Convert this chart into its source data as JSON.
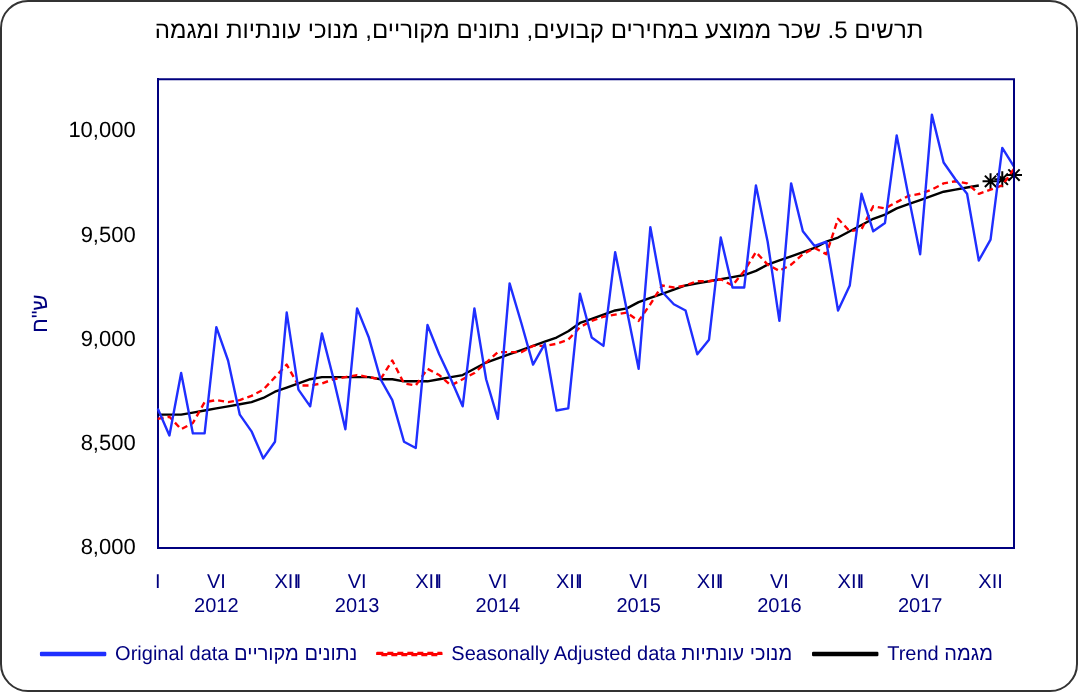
{
  "chart_data": {
    "type": "line",
    "title": "תרשים 5. שכר ממוצע במחירים קבועים, נתונים מקוריים, מנוכי עונתיות ומגמה",
    "ylabel": "ש\"ח",
    "categories": [
      "I",
      null,
      null,
      null,
      null,
      "VI\n2012",
      null,
      null,
      null,
      null,
      null,
      "XII",
      "I",
      null,
      null,
      null,
      null,
      "VI\n2013",
      null,
      null,
      null,
      null,
      null,
      "XII",
      "I",
      null,
      null,
      null,
      null,
      "VI\n2014",
      null,
      null,
      null,
      null,
      null,
      "XII",
      "I",
      null,
      null,
      null,
      null,
      "VI\n2015",
      null,
      null,
      null,
      null,
      null,
      "XII",
      "I",
      null,
      null,
      null,
      null,
      "VI\n2016",
      null,
      null,
      null,
      null,
      null,
      "XII",
      "I",
      null,
      null,
      null,
      null,
      "VI\n2017",
      null,
      null,
      null,
      null,
      null,
      "XII",
      null,
      null
    ],
    "ylim": [
      8000,
      10250
    ],
    "yticks": [
      {
        "value": 8000,
        "label": "8,000"
      },
      {
        "value": 8500,
        "label": "8,500"
      },
      {
        "value": 9000,
        "label": "9,000"
      },
      {
        "value": 9500,
        "label": "9,500"
      },
      {
        "value": 10000,
        "label": "10,000"
      }
    ],
    "grid": false,
    "legend": "bottom",
    "marker": "none",
    "series": [
      {
        "name": "Original data נתונים מקוריים",
        "color": "#1f2fff",
        "values": [
          8670,
          8540,
          8840,
          8550,
          8550,
          9060,
          8900,
          8640,
          8560,
          8430,
          8510,
          9130,
          8760,
          8680,
          9030,
          8810,
          8570,
          9150,
          9010,
          8810,
          8710,
          8510,
          8480,
          9070,
          8930,
          8810,
          8680,
          9150,
          8810,
          8620,
          9270,
          9080,
          8880,
          8980,
          8660,
          8670,
          9220,
          9010,
          8970,
          9420,
          9140,
          8860,
          9540,
          9230,
          9170,
          9140,
          8930,
          9000,
          9490,
          9250,
          9250,
          9740,
          9470,
          9090,
          9750,
          9520,
          9450,
          9470,
          9140,
          9260,
          9700,
          9520,
          9560,
          9980,
          9690,
          9410,
          10080,
          9850,
          9770,
          9700,
          9380,
          9480,
          9920,
          9830
        ]
      },
      {
        "name": "Seasonally Adjusted data מנוכי עונתיות",
        "color": "#ff0000",
        "line_style": "dashed",
        "values": [
          8620,
          8630,
          8570,
          8600,
          8700,
          8710,
          8700,
          8710,
          8730,
          8760,
          8820,
          8880,
          8780,
          8780,
          8790,
          8810,
          8820,
          8830,
          8820,
          8810,
          8900,
          8790,
          8780,
          8860,
          8830,
          8780,
          8810,
          8840,
          8890,
          8940,
          8940,
          8940,
          8970,
          8970,
          8980,
          9000,
          9060,
          9090,
          9110,
          9120,
          9130,
          9090,
          9170,
          9260,
          9250,
          9260,
          9280,
          9280,
          9290,
          9260,
          9330,
          9420,
          9360,
          9330,
          9360,
          9410,
          9440,
          9410,
          9580,
          9520,
          9530,
          9640,
          9630,
          9660,
          9690,
          9700,
          9720,
          9750,
          9760,
          9750,
          9700,
          9720,
          9740,
          9820
        ]
      },
      {
        "name": "Trend מגמה",
        "color": "#000000",
        "values": [
          8640,
          8640,
          8640,
          8650,
          8660,
          8670,
          8680,
          8690,
          8700,
          8720,
          8750,
          8770,
          8790,
          8810,
          8820,
          8820,
          8820,
          8820,
          8820,
          8810,
          8810,
          8800,
          8800,
          8800,
          8810,
          8820,
          8830,
          8860,
          8890,
          8910,
          8930,
          8950,
          8970,
          8990,
          9010,
          9040,
          9080,
          9100,
          9120,
          9140,
          9150,
          9180,
          9200,
          9220,
          9240,
          9260,
          9270,
          9280,
          9290,
          9300,
          9310,
          9330,
          9360,
          9380,
          9400,
          9420,
          9440,
          9470,
          9490,
          9520,
          9550,
          9580,
          9600,
          9630,
          9650,
          9670,
          9690,
          9710,
          9720,
          9730,
          9740,
          null,
          null,
          null
        ]
      },
      {
        "type": "scatter",
        "color": "#000000",
        "marker": "cross",
        "values": [
          null,
          null,
          null,
          null,
          null,
          null,
          null,
          null,
          null,
          null,
          null,
          null,
          null,
          null,
          null,
          null,
          null,
          null,
          null,
          null,
          null,
          null,
          null,
          null,
          null,
          null,
          null,
          null,
          null,
          null,
          null,
          null,
          null,
          null,
          null,
          null,
          null,
          null,
          null,
          null,
          null,
          null,
          null,
          null,
          null,
          null,
          null,
          null,
          null,
          null,
          null,
          null,
          null,
          null,
          null,
          null,
          null,
          null,
          null,
          null,
          null,
          null,
          null,
          null,
          null,
          null,
          null,
          null,
          null,
          null,
          null,
          9760,
          9770,
          9790
        ]
      }
    ]
  }
}
